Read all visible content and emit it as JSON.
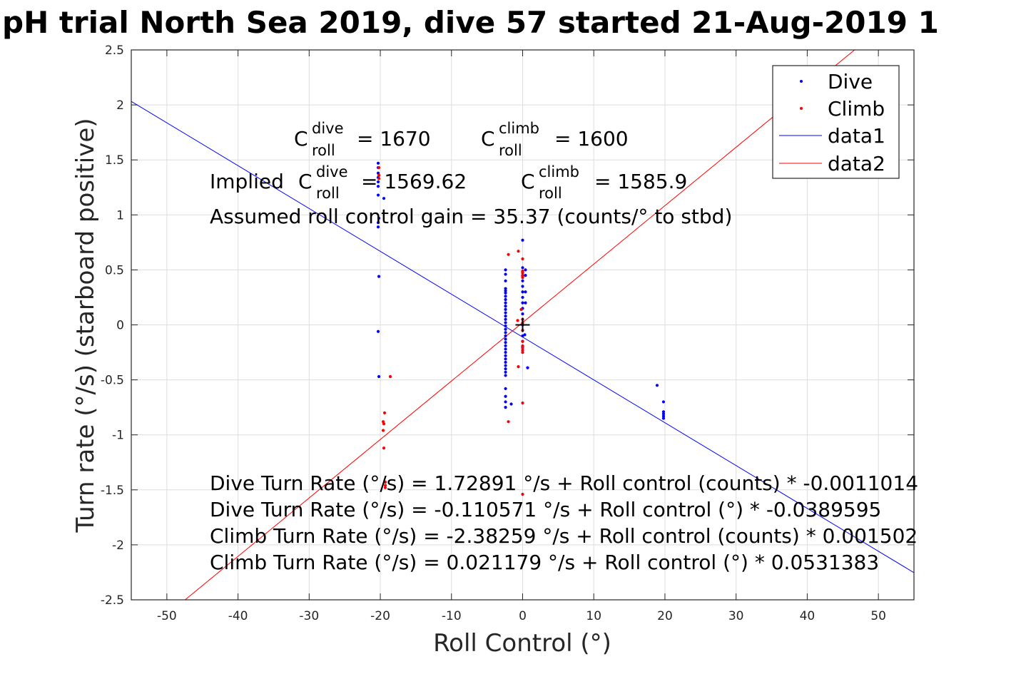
{
  "chart_data": {
    "type": "scatter",
    "title": "pH trial North Sea 2019, dive 57 started 21-Aug-2019 1",
    "xlabel": "Roll Control (°)",
    "ylabel": "Turn rate (°/s) (starboard positive)",
    "xlim": [
      -55,
      55
    ],
    "ylim": [
      -2.5,
      2.5
    ],
    "xticks": [
      -50,
      -40,
      -30,
      -20,
      -10,
      0,
      10,
      20,
      30,
      40,
      50
    ],
    "xtick_labels": [
      "-50",
      "-40",
      "-30",
      "-20",
      "-10",
      "0",
      "10",
      "20",
      "30",
      "40",
      "50"
    ],
    "yticks": [
      2.5,
      2,
      1.5,
      1,
      0.5,
      0,
      -0.5,
      -1,
      -1.5,
      -2,
      -2.5
    ],
    "ytick_labels": [
      "2.5",
      "2",
      "1.5",
      "1",
      "0.5",
      "0",
      "-0.5",
      "-1",
      "-1.5",
      "-2",
      "-2.5"
    ],
    "grid": true,
    "legend_position": "top-right",
    "colors": {
      "dive": "#0000ff",
      "climb": "#ff0000",
      "marker": "#000000"
    },
    "series": [
      {
        "name": "Dive",
        "kind": "points",
        "color": "#0000ff",
        "points": [
          [
            -20.3,
            1.47
          ],
          [
            -20.3,
            1.43
          ],
          [
            -20.3,
            1.38
          ],
          [
            -20.3,
            1.34
          ],
          [
            -20.3,
            1.3
          ],
          [
            -20.3,
            1.26
          ],
          [
            -20.3,
            1.18
          ],
          [
            -19.5,
            1.15
          ],
          [
            -20.2,
            0.97
          ],
          [
            -20.3,
            0.93
          ],
          [
            -20.3,
            0.89
          ],
          [
            -20.2,
            0.44
          ],
          [
            -20.3,
            -0.06
          ],
          [
            -20.2,
            -0.47
          ],
          [
            -2.4,
            0.5
          ],
          [
            -2.4,
            0.46
          ],
          [
            -2.4,
            0.4
          ],
          [
            -2.4,
            0.33
          ],
          [
            -2.4,
            0.31
          ],
          [
            -2.4,
            0.29
          ],
          [
            -2.4,
            0.26
          ],
          [
            -2.4,
            0.23
          ],
          [
            -2.4,
            0.2
          ],
          [
            -2.4,
            0.17
          ],
          [
            -2.4,
            0.14
          ],
          [
            -2.4,
            0.11
          ],
          [
            -2.4,
            0.08
          ],
          [
            -2.4,
            0.05
          ],
          [
            -2.4,
            0.02
          ],
          [
            -2.4,
            -0.01
          ],
          [
            -2.4,
            -0.04
          ],
          [
            -2.4,
            -0.07
          ],
          [
            -2.4,
            -0.1
          ],
          [
            -2.4,
            -0.13
          ],
          [
            -2.4,
            -0.16
          ],
          [
            -2.4,
            -0.19
          ],
          [
            -2.4,
            -0.22
          ],
          [
            -2.4,
            -0.25
          ],
          [
            -2.4,
            -0.28
          ],
          [
            -2.4,
            -0.31
          ],
          [
            -2.4,
            -0.34
          ],
          [
            -2.4,
            -0.37
          ],
          [
            -2.4,
            -0.4
          ],
          [
            -2.4,
            -0.43
          ],
          [
            -2.4,
            -0.46
          ],
          [
            -2.4,
            -0.58
          ],
          [
            -2.4,
            -0.65
          ],
          [
            -2.4,
            -0.7
          ],
          [
            -2.4,
            -0.75
          ],
          [
            -1.6,
            -0.72
          ],
          [
            0.0,
            0.77
          ],
          [
            0.0,
            0.52
          ],
          [
            0.0,
            0.48
          ],
          [
            0.0,
            0.45
          ],
          [
            0.0,
            0.4
          ],
          [
            0.0,
            0.35
          ],
          [
            0.0,
            0.3
          ],
          [
            0.0,
            0.25
          ],
          [
            0.0,
            0.2
          ],
          [
            0.0,
            0.15
          ],
          [
            0.0,
            0.1
          ],
          [
            0.0,
            0.05
          ],
          [
            0.0,
            0.0
          ],
          [
            0.0,
            -0.05
          ],
          [
            0.0,
            -0.1
          ],
          [
            0.0,
            -0.15
          ],
          [
            0.0,
            -0.2
          ],
          [
            0.0,
            -0.25
          ],
          [
            0.4,
            0.5
          ],
          [
            0.4,
            0.45
          ],
          [
            0.4,
            0.3
          ],
          [
            0.4,
            0.2
          ],
          [
            0.3,
            -0.09
          ],
          [
            0.7,
            -0.39
          ],
          [
            18.9,
            -0.55
          ],
          [
            19.8,
            -0.7
          ],
          [
            19.8,
            -0.79
          ],
          [
            19.8,
            -0.81
          ],
          [
            19.8,
            -0.83
          ],
          [
            19.8,
            -0.85
          ]
        ]
      },
      {
        "name": "Climb",
        "kind": "points",
        "color": "#ff0000",
        "points": [
          [
            -20.2,
            1.43
          ],
          [
            -20.2,
            1.36
          ],
          [
            -20.2,
            1.33
          ],
          [
            -18.6,
            -0.47
          ],
          [
            -19.4,
            -0.8
          ],
          [
            -19.6,
            -0.88
          ],
          [
            -19.5,
            -0.9
          ],
          [
            -19.6,
            -0.96
          ],
          [
            -19.5,
            -1.12
          ],
          [
            -19.3,
            -1.43
          ],
          [
            -19.3,
            -1.46
          ],
          [
            -19.3,
            -1.48
          ],
          [
            -2.0,
            0.64
          ],
          [
            -0.6,
            0.67
          ],
          [
            0.0,
            0.6
          ],
          [
            0.0,
            0.49
          ],
          [
            0.0,
            0.47
          ],
          [
            0.0,
            0.45
          ],
          [
            0.0,
            0.44
          ],
          [
            0.0,
            0.43
          ],
          [
            -0.2,
            0.14
          ],
          [
            -0.7,
            0.04
          ],
          [
            0.0,
            0.05
          ],
          [
            0.0,
            0.02
          ],
          [
            0.0,
            -0.05
          ],
          [
            0.0,
            -0.15
          ],
          [
            0.0,
            -0.19
          ],
          [
            0.0,
            -0.21
          ],
          [
            0.0,
            -0.23
          ],
          [
            0.0,
            -0.25
          ],
          [
            -0.6,
            -0.38
          ],
          [
            0.0,
            -0.71
          ],
          [
            -2.0,
            -0.88
          ],
          [
            0.0,
            -1.54
          ]
        ]
      },
      {
        "name": "data1",
        "kind": "line",
        "color": "#0000ff",
        "x": [
          -55,
          55
        ],
        "y": [
          2.032,
          -2.253
        ]
      },
      {
        "name": "data2",
        "kind": "line",
        "color": "#ff0000",
        "x": [
          -55,
          55
        ],
        "y": [
          -2.902,
          2.944
        ]
      }
    ],
    "marker": {
      "symbol": "+",
      "x": 0,
      "y": 0
    },
    "annotations": {
      "c_dive": {
        "base": "C",
        "sup": "dive",
        "sub": "roll",
        "value": "= 1670"
      },
      "c_climb": {
        "base": "C",
        "sup": "climb",
        "sub": "roll",
        "value": "= 1600"
      },
      "implied_prefix": "Implied ",
      "implied_dive": {
        "base": "C",
        "sup": "dive",
        "sub": "roll",
        "value": "= 1569.62"
      },
      "implied_climb": {
        "base": "C",
        "sup": "climb",
        "sub": "roll",
        "value": "= 1585.9"
      },
      "gain": "Assumed roll control gain = 35.37 (counts/° to stbd)",
      "eq1": "Dive Turn Rate (°/s) = 1.72891 °/s + Roll control (counts) * -0.0011014",
      "eq2": "Dive Turn Rate (°/s) = -0.110571 °/s + Roll control (°) * -0.0389595",
      "eq3": "Climb Turn Rate (°/s) = -2.38259 °/s + Roll control (counts) * 0.001502",
      "eq4": "Climb Turn Rate (°/s) = 0.021179 °/s + Roll control (°) * 0.0531383"
    }
  }
}
